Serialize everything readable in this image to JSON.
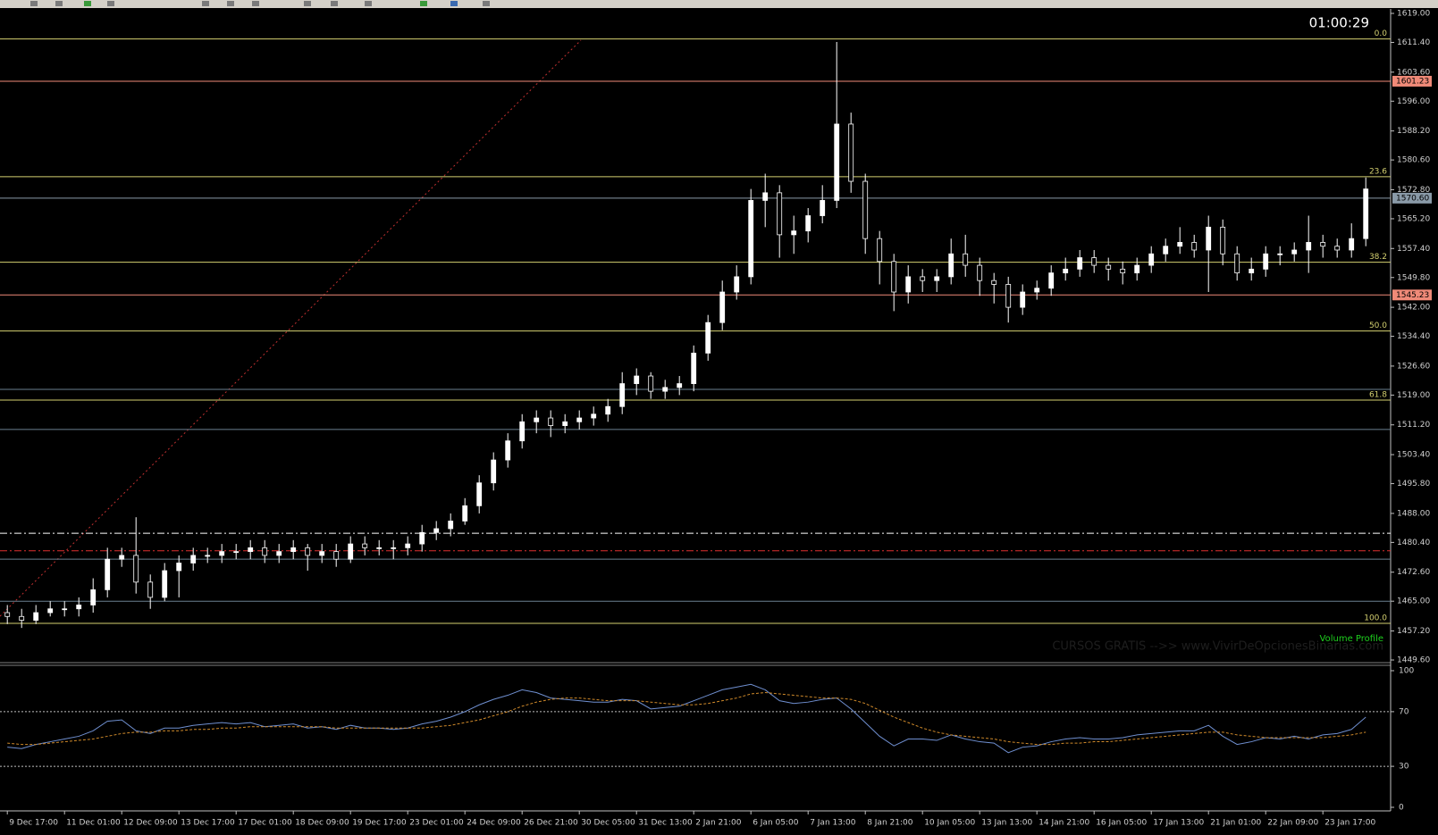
{
  "clock": "01:00:29",
  "watermark": "CURSOS GRATIS -->> www.VivirDeOpcionesBinarias.com",
  "chart_data": {
    "type": "candlestick",
    "indicator_label": "Volume Profile",
    "categories": [
      "9 Dec 17:00",
      null,
      null,
      null,
      "11 Dec 01:00",
      null,
      null,
      null,
      "12 Dec 09:00",
      null,
      null,
      null,
      "13 Dec 17:00",
      null,
      null,
      null,
      "17 Dec 01:00",
      null,
      null,
      null,
      "18 Dec 09:00",
      null,
      null,
      null,
      "19 Dec 17:00",
      null,
      null,
      null,
      "23 Dec 01:00",
      null,
      null,
      null,
      "24 Dec 09:00",
      null,
      null,
      null,
      "26 Dec 21:00",
      null,
      null,
      null,
      "30 Dec 05:00",
      null,
      null,
      null,
      "31 Dec 13:00",
      null,
      null,
      null,
      "2 Jan 21:00",
      null,
      null,
      null,
      "6 Jan 05:00",
      null,
      null,
      null,
      "7 Jan 13:00",
      null,
      null,
      null,
      "8 Jan 21:00",
      null,
      null,
      null,
      "10 Jan 05:00",
      null,
      null,
      null,
      "13 Jan 13:00",
      null,
      null,
      null,
      "14 Jan 21:00",
      null,
      null,
      null,
      "16 Jan 05:00",
      null,
      null,
      null,
      "17 Jan 13:00",
      null,
      null,
      null,
      "21 Jan 01:00",
      null,
      null,
      null,
      "22 Jan 09:00",
      null,
      null,
      null,
      "23 Jan 17:00",
      null,
      null,
      null
    ],
    "opens": [
      1462,
      1461,
      1460,
      1462,
      1463,
      1463,
      1464,
      1468,
      1476,
      1477,
      1470,
      1466,
      1473,
      1475,
      1477,
      1477,
      1478,
      1478,
      1479,
      1477,
      1478,
      1479,
      1477,
      1478,
      1476,
      1480,
      1479,
      1479,
      1479,
      1480,
      1483,
      1484,
      1486,
      1490,
      1496,
      1502,
      1507,
      1512,
      1513,
      1511,
      1512,
      1513,
      1514,
      1516,
      1522,
      1524,
      1520,
      1521,
      1522,
      1530,
      1538,
      1546,
      1550,
      1570,
      1572,
      1561,
      1562,
      1566,
      1570,
      1590,
      1575,
      1560,
      1554,
      1546,
      1550,
      1549,
      1550,
      1556,
      1553,
      1549,
      1548,
      1542,
      1546,
      1547,
      1551,
      1552,
      1555,
      1553,
      1552,
      1551,
      1553,
      1556,
      1558,
      1559,
      1557,
      1563,
      1556,
      1551,
      1552,
      1556,
      1556,
      1557,
      1559,
      1558,
      1557,
      1560
    ],
    "highs": [
      1464,
      1463,
      1464,
      1465,
      1465,
      1466,
      1471,
      1479,
      1479,
      1487,
      1472,
      1475,
      1477,
      1479,
      1479,
      1480,
      1480,
      1481,
      1481,
      1480,
      1481,
      1480,
      1480,
      1480,
      1482,
      1482,
      1481,
      1481,
      1482,
      1485,
      1486,
      1488,
      1492,
      1498,
      1504,
      1509,
      1514,
      1515,
      1515,
      1514,
      1515,
      1516,
      1518,
      1525,
      1526,
      1525,
      1523,
      1524,
      1532,
      1540,
      1549,
      1553,
      1573,
      1577,
      1574,
      1566,
      1568,
      1574,
      1611.5,
      1593,
      1577,
      1562,
      1556,
      1553,
      1552,
      1552,
      1560,
      1561,
      1555,
      1551,
      1550,
      1548,
      1549,
      1553,
      1555,
      1557,
      1557,
      1555,
      1554,
      1555,
      1558,
      1560,
      1563,
      1561,
      1566,
      1565,
      1558,
      1555,
      1558,
      1558,
      1559,
      1566,
      1561,
      1560,
      1564,
      1576
    ],
    "lows": [
      1459,
      1458,
      1459,
      1461,
      1461,
      1461,
      1462,
      1466,
      1474,
      1467,
      1463,
      1465,
      1466,
      1473,
      1475,
      1475,
      1476,
      1476,
      1475,
      1475,
      1476,
      1473,
      1475,
      1474,
      1475,
      1477,
      1477,
      1476,
      1477,
      1478,
      1481,
      1482,
      1485,
      1488,
      1494,
      1500,
      1505,
      1509,
      1508,
      1509,
      1510,
      1511,
      1512,
      1514,
      1519,
      1518,
      1518,
      1519,
      1520,
      1528,
      1536,
      1544,
      1548,
      1563,
      1555,
      1556,
      1559,
      1564,
      1568,
      1572,
      1556,
      1548,
      1541,
      1543,
      1546,
      1546,
      1548,
      1550,
      1545,
      1543,
      1538,
      1540,
      1544,
      1545,
      1549,
      1550,
      1551,
      1549,
      1548,
      1549,
      1551,
      1554,
      1556,
      1555,
      1546,
      1553,
      1549,
      1549,
      1550,
      1553,
      1554,
      1551,
      1555,
      1555,
      1555,
      1558
    ],
    "closes": [
      1461,
      1460,
      1462,
      1463,
      1463,
      1464,
      1468,
      1476,
      1477,
      1470,
      1466,
      1473,
      1475,
      1477,
      1477,
      1478,
      1478,
      1479,
      1477,
      1478,
      1479,
      1477,
      1478,
      1476,
      1480,
      1479,
      1479,
      1479,
      1480,
      1483,
      1484,
      1486,
      1490,
      1496,
      1502,
      1507,
      1512,
      1513,
      1511,
      1512,
      1513,
      1514,
      1516,
      1522,
      1524,
      1520,
      1521,
      1522,
      1530,
      1538,
      1546,
      1550,
      1570,
      1572,
      1561,
      1562,
      1566,
      1570,
      1590,
      1575,
      1560,
      1554,
      1546,
      1550,
      1549,
      1550,
      1556,
      1553,
      1549,
      1548,
      1542,
      1546,
      1547,
      1551,
      1552,
      1555,
      1553,
      1552,
      1551,
      1553,
      1556,
      1558,
      1559,
      1557,
      1563,
      1556,
      1551,
      1552,
      1556,
      1556,
      1557,
      1559,
      1558,
      1557,
      1560,
      1573
    ],
    "ylim": [
      1448.2,
      1619.7
    ],
    "yticks": [
      {
        "value": 1619,
        "label": "1619.00"
      },
      {
        "value": 1611.4,
        "label": "1611.40"
      },
      {
        "value": 1603.6,
        "label": "1603.60"
      },
      {
        "value": 1596,
        "label": "1596.00"
      },
      {
        "value": 1588.2,
        "label": "1588.20"
      },
      {
        "value": 1580.6,
        "label": "1580.60"
      },
      {
        "value": 1572.8,
        "label": "1572.80"
      },
      {
        "value": 1565.2,
        "label": "1565.20"
      },
      {
        "value": 1557.4,
        "label": "1557.40"
      },
      {
        "value": 1549.8,
        "label": "1549.80"
      },
      {
        "value": 1542,
        "label": "1542.00"
      },
      {
        "value": 1534.4,
        "label": "1534.40"
      },
      {
        "value": 1526.6,
        "label": "1526.60"
      },
      {
        "value": 1519,
        "label": "1519.00"
      },
      {
        "value": 1511.2,
        "label": "1511.20"
      },
      {
        "value": 1503.4,
        "label": "1503.40"
      },
      {
        "value": 1495.8,
        "label": "1495.80"
      },
      {
        "value": 1488,
        "label": "1488.00"
      },
      {
        "value": 1480.4,
        "label": "1480.40"
      },
      {
        "value": 1472.6,
        "label": "1472.60"
      },
      {
        "value": 1465,
        "label": "1465.00"
      },
      {
        "value": 1457.2,
        "label": "1457.20"
      },
      {
        "value": 1449.6,
        "label": "1449.60"
      }
    ],
    "fib_levels": [
      {
        "label": "0.0",
        "price": 1612.3
      },
      {
        "label": "23.6",
        "price": 1576.2
      },
      {
        "label": "38.2",
        "price": 1553.8
      },
      {
        "label": "50.0",
        "price": 1535.8
      },
      {
        "label": "61.8",
        "price": 1517.7
      },
      {
        "label": "100.0",
        "price": 1459.2
      }
    ],
    "fib_color": "#d4d070",
    "price_lines": [
      {
        "value": 1601.23,
        "color": "#f08a78"
      },
      {
        "value": 1570.6,
        "label": "1570.60",
        "color": "#8a9aa8"
      },
      {
        "value": 1545.23,
        "color": "#f08a78"
      }
    ],
    "levels": [
      {
        "value": 1482.8,
        "color": "#ffffff",
        "dash": "8 3 2 3"
      },
      {
        "value": 1478.2,
        "color": "#e03030",
        "dash": "8 3 2 3"
      },
      {
        "value": 1476,
        "color": "#6a8090"
      },
      {
        "value": 1520.5,
        "color": "#6a8090"
      },
      {
        "value": 1510,
        "color": "#6a8090"
      },
      {
        "value": 1465,
        "color": "#6a8090"
      }
    ],
    "rsi": {
      "type": "line",
      "ylim": [
        0,
        100
      ],
      "yticks": [
        100,
        70,
        30,
        0
      ],
      "levels": [
        70,
        30
      ],
      "series": [
        {
          "color": "#6f8fd0",
          "values": [
            44,
            43,
            46,
            48,
            50,
            52,
            56,
            63,
            64,
            56,
            54,
            58,
            58,
            60,
            61,
            62,
            61,
            62,
            59,
            60,
            61,
            58,
            59,
            57,
            60,
            58,
            58,
            57,
            58,
            61,
            63,
            66,
            70,
            75,
            79,
            82,
            86,
            84,
            80,
            79,
            78,
            77,
            77,
            79,
            78,
            72,
            73,
            74,
            78,
            82,
            86,
            88,
            90,
            86,
            78,
            76,
            77,
            79,
            80,
            72,
            62,
            52,
            45,
            50,
            50,
            49,
            53,
            50,
            48,
            47,
            40,
            44,
            45,
            48,
            50,
            51,
            50,
            50,
            51,
            53,
            54,
            55,
            56,
            56,
            60,
            52,
            46,
            48,
            51,
            50,
            52,
            50,
            53,
            54,
            57,
            66
          ]
        },
        {
          "color": "#d08a2a",
          "dash": "3 2",
          "values": [
            47,
            46,
            46,
            47,
            48,
            49,
            50,
            52,
            54,
            55,
            55,
            56,
            56,
            57,
            57,
            58,
            58,
            59,
            59,
            59,
            59,
            59,
            59,
            58,
            58,
            58,
            58,
            58,
            58,
            58,
            59,
            60,
            62,
            64,
            67,
            70,
            74,
            77,
            79,
            80,
            80,
            79,
            78,
            78,
            78,
            77,
            76,
            75,
            75,
            76,
            78,
            80,
            83,
            84,
            83,
            82,
            81,
            80,
            80,
            79,
            76,
            71,
            66,
            62,
            58,
            55,
            53,
            52,
            51,
            50,
            48,
            47,
            46,
            46,
            47,
            47,
            48,
            48,
            49,
            50,
            51,
            52,
            53,
            54,
            55,
            55,
            53,
            52,
            51,
            51,
            51,
            51,
            51,
            52,
            53,
            55
          ]
        }
      ]
    }
  }
}
